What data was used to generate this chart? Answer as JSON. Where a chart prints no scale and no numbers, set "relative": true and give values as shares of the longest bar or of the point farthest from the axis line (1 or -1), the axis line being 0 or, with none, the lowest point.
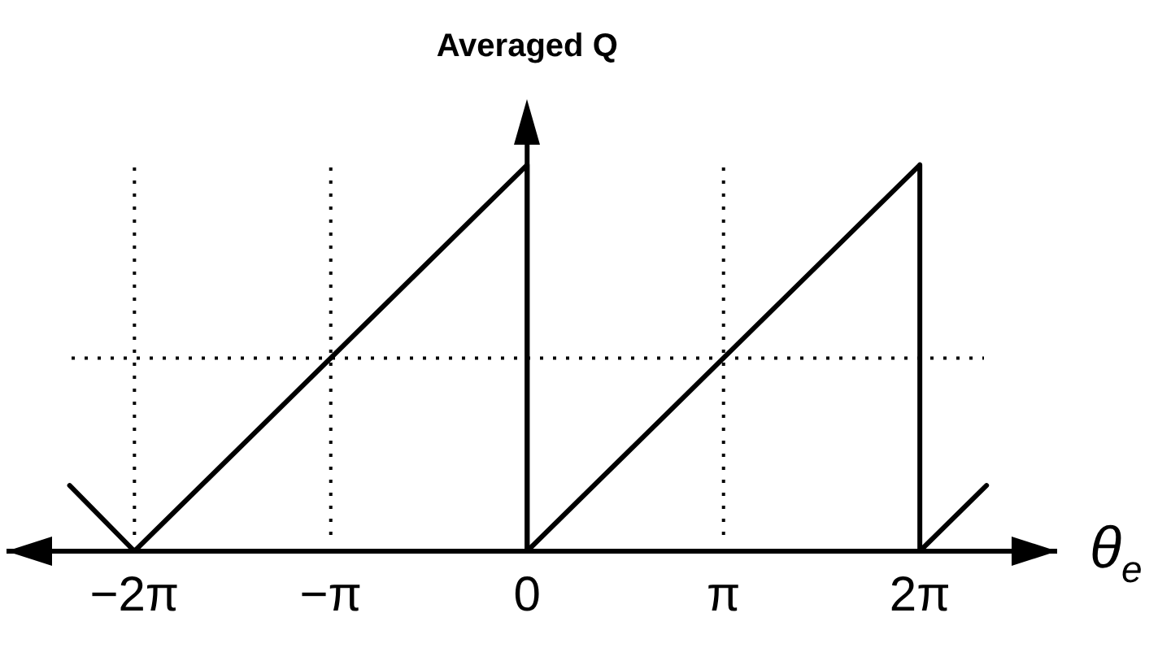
{
  "chart_data": {
    "type": "line",
    "relative": true,
    "ylabel": "Averaged Q",
    "xlabel": "θ$_{e}$",
    "x": [
      -7.32,
      -6.283,
      0,
      0,
      6.283,
      6.283,
      7.35
    ],
    "series": [
      {
        "color": "#000000",
        "values": [
          0.17,
          0,
          1,
          0,
          1,
          0,
          0.17
        ]
      }
    ],
    "xlim": [
      -8.33,
      8.48
    ],
    "xticks": [
      {
        "value": -6.283,
        "label": "−2π"
      },
      {
        "value": -3.142,
        "label": "−π"
      },
      {
        "value": 0,
        "label": "0"
      },
      {
        "value": 3.142,
        "label": "π"
      },
      {
        "value": 6.283,
        "label": "2π"
      }
    ],
    "ref_lines": [
      {
        "axis": "x",
        "value": -6.283,
        "line_style": "dotted",
        "color": "#000000"
      },
      {
        "axis": "x",
        "value": -3.142,
        "line_style": "dotted",
        "color": "#000000"
      },
      {
        "axis": "x",
        "value": 3.142,
        "line_style": "dotted",
        "color": "#000000"
      },
      {
        "axis": "y",
        "value": 0.5,
        "line_style": "dotted",
        "color": "#000000"
      }
    ],
    "grid": false,
    "legend": false,
    "marker": "none",
    "line_style": "solid",
    "tick_labels": "x"
  }
}
